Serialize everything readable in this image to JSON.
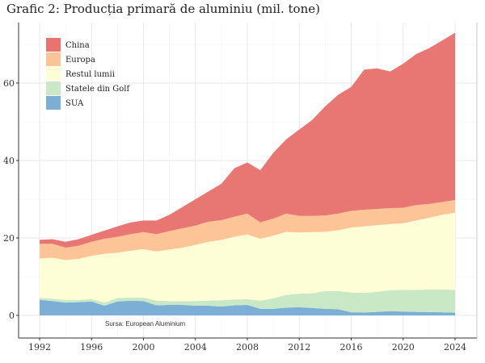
{
  "chart_data": {
    "type": "area",
    "stacked": true,
    "title": "Grafic 2: Producția primară de aluminiu (mil. tone)",
    "source": "Sursa: European Aluminium",
    "xlabel": "",
    "ylabel": "",
    "xlim": [
      1992,
      2024
    ],
    "ylim": [
      0,
      73
    ],
    "x_ticks": [
      1992,
      1996,
      2000,
      2004,
      2008,
      2012,
      2016,
      2020,
      2024
    ],
    "y_ticks": [
      0,
      20,
      40,
      60
    ],
    "grid": true,
    "legend_position": "top-left",
    "x": [
      1992,
      1993,
      1994,
      1995,
      1996,
      1997,
      1998,
      1999,
      2000,
      2001,
      2002,
      2003,
      2004,
      2005,
      2006,
      2007,
      2008,
      2009,
      2010,
      2011,
      2012,
      2013,
      2014,
      2015,
      2016,
      2017,
      2018,
      2019,
      2020,
      2021,
      2022,
      2023,
      2024
    ],
    "series": [
      {
        "name": "SUA",
        "color": "#7bafd5",
        "values": [
          4.0,
          3.7,
          3.3,
          3.4,
          3.6,
          2.5,
          3.6,
          3.8,
          3.7,
          2.6,
          2.7,
          2.7,
          2.5,
          2.5,
          2.3,
          2.6,
          2.7,
          1.7,
          1.7,
          2.0,
          2.1,
          1.9,
          1.7,
          1.6,
          0.8,
          0.75,
          0.9,
          1.1,
          1.0,
          0.9,
          0.86,
          0.8,
          0.7
        ]
      },
      {
        "name": "Statele din Golf",
        "color": "#c9e8c6",
        "values": [
          0.5,
          0.6,
          0.7,
          0.6,
          0.6,
          0.8,
          0.9,
          0.8,
          0.9,
          1.2,
          1.0,
          1.0,
          1.2,
          1.3,
          1.6,
          1.5,
          1.5,
          2.1,
          2.7,
          3.3,
          3.5,
          3.8,
          4.6,
          4.7,
          5.1,
          5.05,
          5.2,
          5.4,
          5.6,
          5.7,
          5.84,
          5.9,
          5.9
        ]
      },
      {
        "name": "Restul lumii",
        "color": "#fefed6",
        "values": [
          10.2,
          10.6,
          10.3,
          10.6,
          11.2,
          12.6,
          11.7,
          12.1,
          12.5,
          12.7,
          13.3,
          13.8,
          14.5,
          15.2,
          15.6,
          16.2,
          16.7,
          16.0,
          16.2,
          16.3,
          15.8,
          15.8,
          15.3,
          15.7,
          16.8,
          17.2,
          17.2,
          17.1,
          17.2,
          17.9,
          18.5,
          19.3,
          19.9
        ]
      },
      {
        "name": "Europa",
        "color": "#fdc597",
        "values": [
          3.8,
          3.6,
          3.2,
          3.4,
          3.6,
          3.9,
          4.1,
          4.3,
          4.4,
          4.5,
          4.8,
          5.0,
          5.0,
          5.2,
          5.1,
          5.2,
          5.4,
          4.2,
          4.4,
          4.7,
          4.3,
          4.2,
          4.2,
          4.3,
          4.3,
          4.3,
          4.2,
          4.1,
          4.0,
          4.0,
          3.6,
          3.3,
          3.3
        ]
      },
      {
        "name": "China",
        "color": "#e8736f",
        "values": [
          1.0,
          1.2,
          1.5,
          1.7,
          1.8,
          2.1,
          2.7,
          3.0,
          3.0,
          3.5,
          4.2,
          5.5,
          6.8,
          7.8,
          9.4,
          12.5,
          13.2,
          13.5,
          17.0,
          19.2,
          22.3,
          24.8,
          28.2,
          30.7,
          32.0,
          36.2,
          36.3,
          35.3,
          37.2,
          39.0,
          40.2,
          41.7,
          43.2
        ]
      }
    ],
    "legend_order": [
      "China",
      "Europa",
      "Restul lumii",
      "Statele din Golf",
      "SUA"
    ]
  }
}
